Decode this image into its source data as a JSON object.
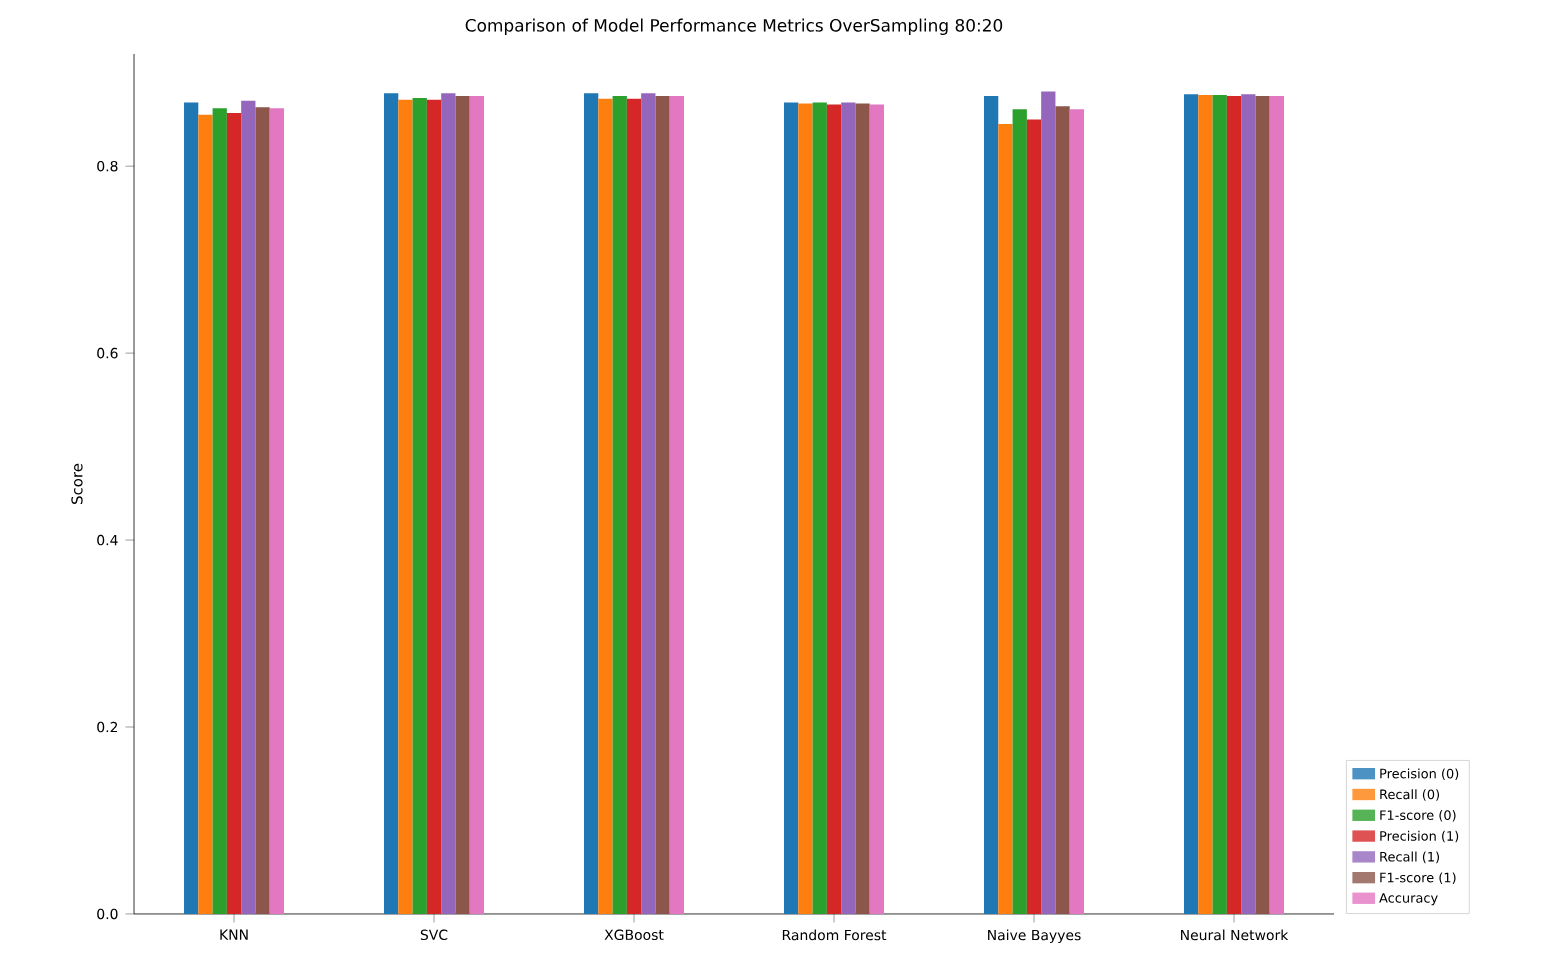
{
  "chart_data": {
    "type": "bar",
    "title": "Comparison of Model Performance Metrics OverSampling 80:20",
    "ylabel": "Score",
    "categories": [
      "KNN",
      "SVC",
      "XGBoost",
      "Random Forest",
      "Naive Bayyes",
      "Neural Network"
    ],
    "series": [
      {
        "name": "Precision (0)",
        "color": "#1f77b4",
        "values": [
          0.868,
          0.878,
          0.878,
          0.868,
          0.875,
          0.877
        ]
      },
      {
        "name": "Recall (0)",
        "color": "#ff7f0e",
        "values": [
          0.855,
          0.871,
          0.872,
          0.867,
          0.845,
          0.876
        ]
      },
      {
        "name": "F1-score (0)",
        "color": "#2ca02c",
        "values": [
          0.862,
          0.873,
          0.875,
          0.868,
          0.861,
          0.876
        ]
      },
      {
        "name": "Precision (1)",
        "color": "#d62728",
        "values": [
          0.857,
          0.871,
          0.872,
          0.866,
          0.85,
          0.875
        ]
      },
      {
        "name": "Recall (1)",
        "color": "#9467bd",
        "values": [
          0.87,
          0.878,
          0.878,
          0.868,
          0.88,
          0.877
        ]
      },
      {
        "name": "F1-score (1)",
        "color": "#8c564b",
        "values": [
          0.863,
          0.875,
          0.875,
          0.867,
          0.864,
          0.875
        ]
      },
      {
        "name": "Accuracy",
        "color": "#e377c2",
        "values": [
          0.862,
          0.875,
          0.875,
          0.866,
          0.861,
          0.875
        ]
      }
    ],
    "ylim": [
      0,
      0.92
    ],
    "yticks": [
      {
        "value": 0,
        "label": "0.0"
      },
      {
        "value": 0.2,
        "label": "0.2"
      },
      {
        "value": 0.4,
        "label": "0.4"
      },
      {
        "value": 0.6,
        "label": "0.6"
      },
      {
        "value": 0.8,
        "label": "0.8"
      }
    ],
    "grid": false,
    "legend": "right"
  }
}
